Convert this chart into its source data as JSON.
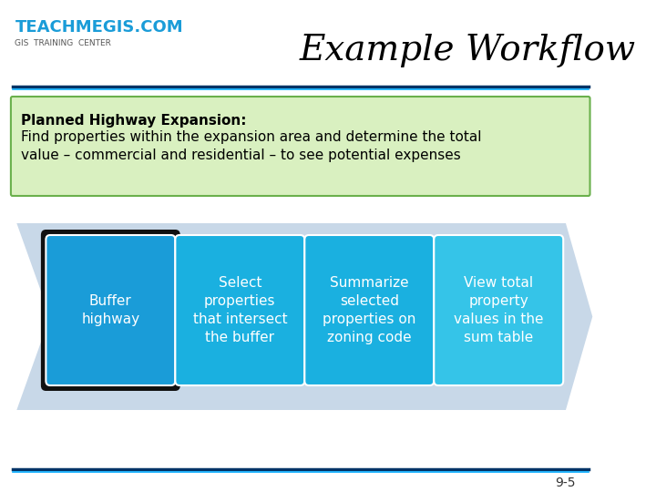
{
  "title": "Example Workflow",
  "title_fontsize": 28,
  "title_color": "#000000",
  "title_font": "serif",
  "bg_color": "#ffffff",
  "header_line_color": "#003366",
  "header_line_color2": "#00aaff",
  "green_box_text_bold": "Planned Highway Expansion:",
  "green_box_text_normal": "Find properties within the expansion area and determine the total\nvalue – commercial and residential – to see potential expenses",
  "green_box_bg": "#d9f0c0",
  "green_box_border": "#6ab04c",
  "arrow_color": "#c8d8e8",
  "steps": [
    {
      "text": "Buffer\nhighway",
      "color": "#1a9cd8",
      "border": "#003366",
      "has_dark_border": true
    },
    {
      "text": "Select\nproperties\nthat intersect\nthe buffer",
      "color": "#1ab0e0",
      "border": "#1ab0e0",
      "has_dark_border": false
    },
    {
      "text": "Summarize\nselected\nproperties on\nzoning code",
      "color": "#1ab0e0",
      "border": "#1ab0e0",
      "has_dark_border": false
    },
    {
      "text": "View total\nproperty\nvalues in the\nsum table",
      "color": "#35c4e8",
      "border": "#35c4e8",
      "has_dark_border": false
    }
  ],
  "footer_text": "9-5",
  "logo_text": "TEACHMEGIS.COM",
  "logo_sub": "GIS  TRAINING  CENTER",
  "dark_border_color": "#111111",
  "box_text_color": "#ffffff",
  "footer_color": "#333333"
}
